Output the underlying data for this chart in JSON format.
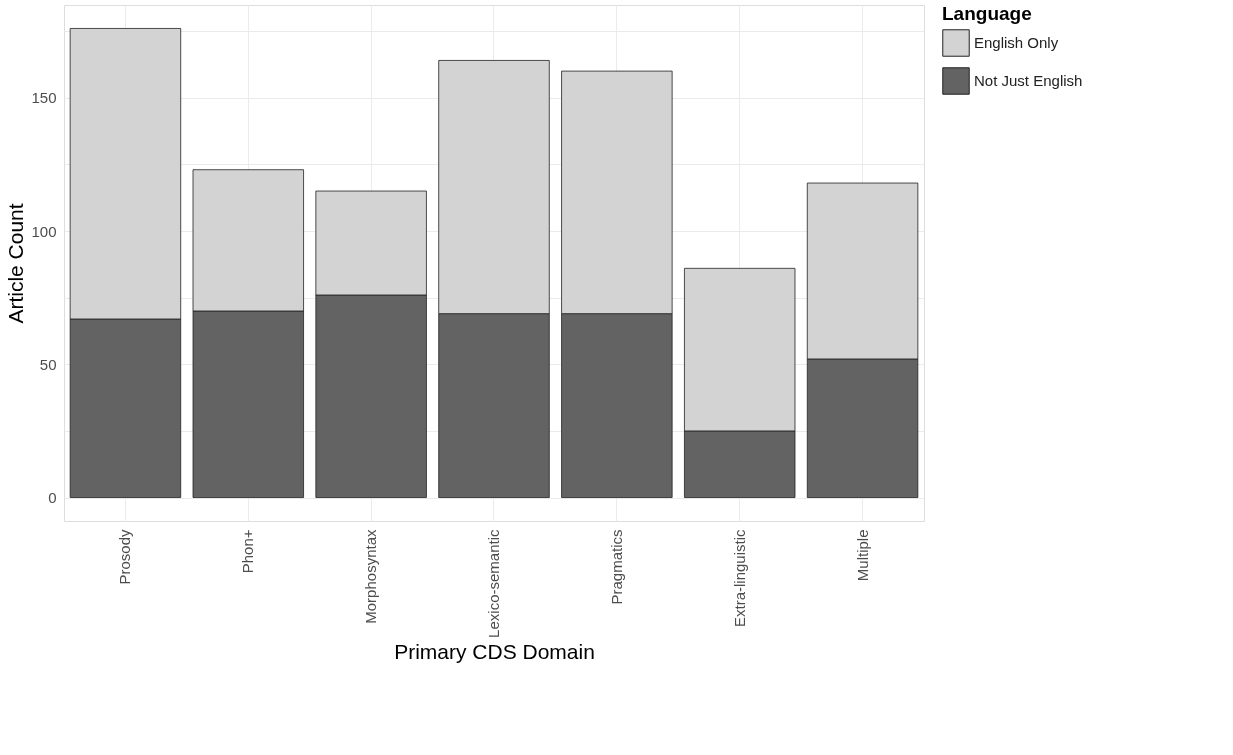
{
  "chart_data": {
    "type": "bar",
    "stacked": true,
    "xlabel": "Primary CDS Domain",
    "ylabel": "Article Count",
    "legend_title": "Language",
    "legend": "right",
    "categories": [
      "Prosody",
      "Phon+",
      "Morphosyntax",
      "Lexico-semantic",
      "Pragmatics",
      "Extra-linguistic",
      "Multiple"
    ],
    "series": [
      {
        "name": "Not Just English",
        "color": "#636363",
        "values": [
          67,
          70,
          76,
          69,
          69,
          25,
          52
        ]
      },
      {
        "name": "English Only",
        "color": "#d3d3d3",
        "values": [
          109,
          53,
          39,
          95,
          91,
          61,
          66
        ]
      }
    ],
    "ylim": [
      -8.8,
      184.8
    ],
    "yticks": [
      0,
      {
        "value": 25,
        "label": null
      },
      50,
      {
        "value": 75,
        "label": null
      },
      100,
      {
        "value": 125,
        "label": null
      },
      150,
      {
        "value": 175,
        "label": null
      }
    ],
    "grid": true
  }
}
